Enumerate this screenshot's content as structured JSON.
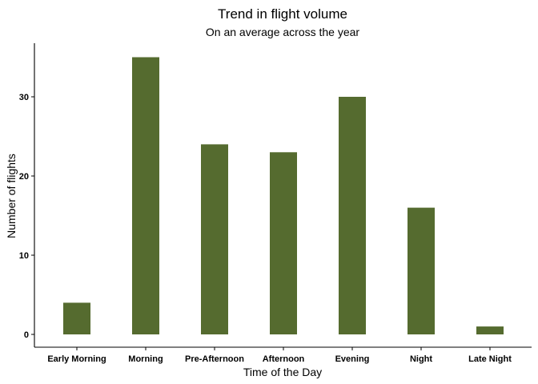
{
  "chart_data": {
    "type": "bar",
    "title": "Trend in flight volume",
    "subtitle": "On an average across the year",
    "xlabel": "Time of the Day",
    "ylabel": "Number of flights",
    "categories": [
      "Early Morning",
      "Morning",
      "Pre-Afternoon",
      "Afternoon",
      "Evening",
      "Night",
      "Late Night"
    ],
    "values": [
      4,
      35,
      24,
      23,
      30,
      16,
      1
    ],
    "ylim": [
      0,
      36.5
    ],
    "yticks": [
      0,
      10,
      20,
      30
    ],
    "bar_color": "#556B2F",
    "grid": false,
    "legend": "none"
  }
}
